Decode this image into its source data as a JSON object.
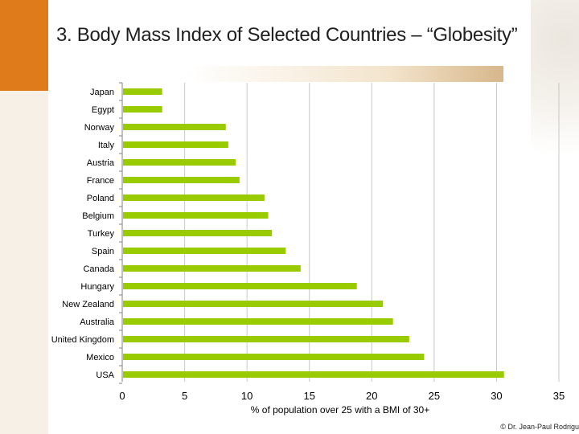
{
  "title": "3. Body Mass Index of Selected Countries – “Globesity”",
  "credit": "© Dr. Jean-Paul Rodrigu",
  "colors": {
    "bar": "#99cc00",
    "accent": "#e07b1c",
    "grid": "#c8c8c8"
  },
  "chart_data": {
    "type": "bar",
    "orientation": "horizontal",
    "title": "3. Body Mass Index of Selected Countries – “Globesity”",
    "xlabel": "% of population over 25 with a BMI of 30+",
    "ylabel": "",
    "xlim": [
      0,
      35
    ],
    "xticks": [
      0,
      5,
      10,
      15,
      20,
      25,
      30,
      35
    ],
    "grid": true,
    "categories": [
      "Japan",
      "Egypt",
      "Norway",
      "Italy",
      "Austria",
      "France",
      "Poland",
      "Belgium",
      "Turkey",
      "Spain",
      "Canada",
      "Hungary",
      "New Zealand",
      "Australia",
      "United Kingdom",
      "Mexico",
      "USA"
    ],
    "values": [
      3.2,
      3.2,
      8.3,
      8.5,
      9.1,
      9.4,
      11.4,
      11.7,
      12.0,
      13.1,
      14.3,
      18.8,
      20.9,
      21.7,
      23.0,
      24.2,
      30.6
    ]
  }
}
